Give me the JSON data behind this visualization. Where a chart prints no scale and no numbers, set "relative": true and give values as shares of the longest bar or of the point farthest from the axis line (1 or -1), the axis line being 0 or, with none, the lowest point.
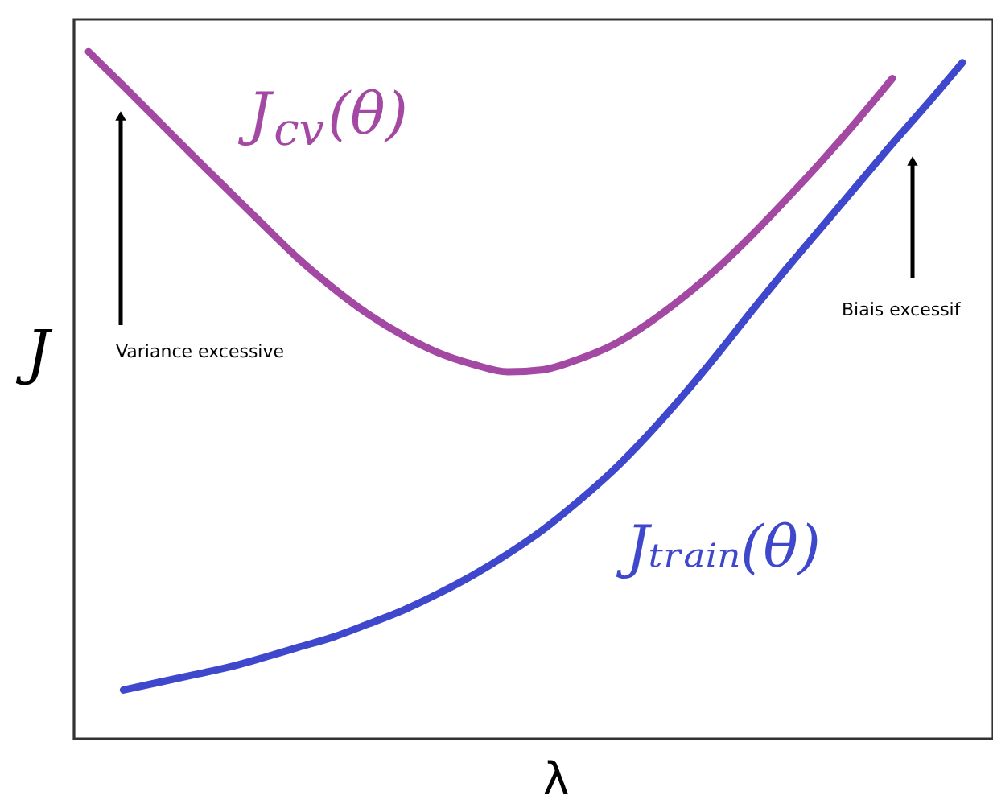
{
  "chart_data": {
    "type": "line",
    "relative": true,
    "xlabel": "λ",
    "ylabel": "J",
    "categories": [
      null,
      null,
      null,
      null,
      null,
      null,
      null,
      null,
      null,
      null,
      null,
      null,
      null,
      null,
      null,
      null,
      null,
      null,
      null,
      null,
      null,
      null,
      null,
      null,
      null,
      null
    ],
    "series": [
      {
        "name": "J$_{cv}$(θ)",
        "color": "#a349a4",
        "values": [
          1.0,
          0.95,
          0.899,
          0.848,
          0.798,
          0.748,
          0.699,
          0.656,
          0.618,
          0.587,
          0.562,
          0.545,
          0.534,
          0.537,
          0.552,
          0.573,
          0.604,
          0.642,
          0.685,
          0.734,
          0.787,
          0.842,
          0.9,
          0.961,
          null,
          null
        ]
      },
      {
        "name": "Jₜᵣₐᵢₙ(θ)",
        "color": "#3f48cc",
        "values": [
          null,
          0.071,
          0.082,
          0.093,
          0.104,
          0.118,
          0.133,
          0.148,
          0.167,
          0.187,
          0.211,
          0.238,
          0.269,
          0.304,
          0.345,
          0.39,
          0.442,
          0.499,
          0.56,
          0.624,
          0.686,
          0.746,
          0.806,
          0.866,
          0.924,
          0.984
        ]
      }
    ],
    "annotations": [
      "Variance excessive",
      "Biais excessif"
    ],
    "line_style": "solid"
  }
}
